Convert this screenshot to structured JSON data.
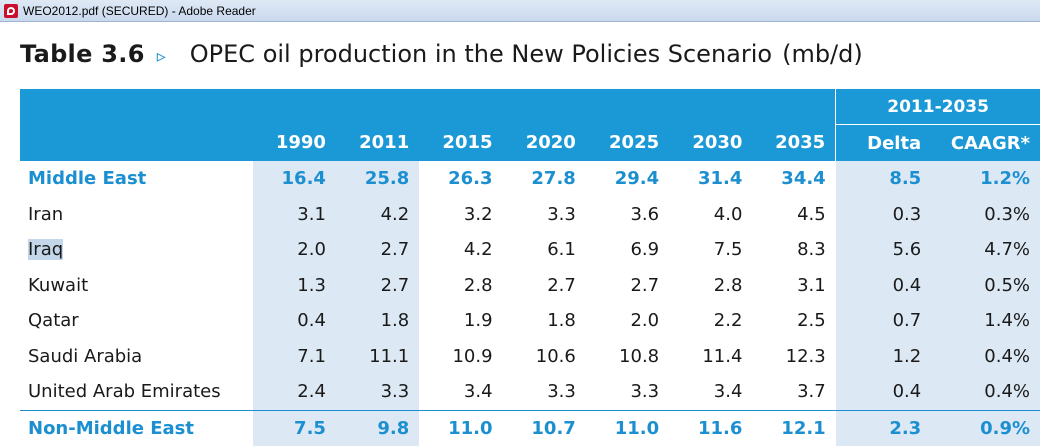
{
  "window": {
    "title": "WEO2012.pdf (SECURED) - Adobe Reader"
  },
  "heading": {
    "table_number": "Table 3.6",
    "arrow": "▹",
    "title": "OPEC oil production in the New Policies Scenario",
    "unit": "(mb/d)"
  },
  "table": {
    "period_header": "2011-2035",
    "year_headers": [
      "1990",
      "2011",
      "2015",
      "2020",
      "2025",
      "2030",
      "2035"
    ],
    "delta_header": "Delta",
    "caagr_header": "CAAGR*",
    "rows": [
      {
        "label": "Middle East",
        "values": [
          "16.4",
          "25.8",
          "26.3",
          "27.8",
          "29.4",
          "31.4",
          "34.4"
        ],
        "delta": "8.5",
        "caagr": "1.2%"
      },
      {
        "label": "Iran",
        "values": [
          "3.1",
          "4.2",
          "3.2",
          "3.3",
          "3.6",
          "4.0",
          "4.5"
        ],
        "delta": "0.3",
        "caagr": "0.3%"
      },
      {
        "label": "Iraq",
        "values": [
          "2.0",
          "2.7",
          "4.2",
          "6.1",
          "6.9",
          "7.5",
          "8.3"
        ],
        "delta": "5.6",
        "caagr": "4.7%"
      },
      {
        "label": "Kuwait",
        "values": [
          "1.3",
          "2.7",
          "2.8",
          "2.7",
          "2.7",
          "2.8",
          "3.1"
        ],
        "delta": "0.4",
        "caagr": "0.5%"
      },
      {
        "label": "Qatar",
        "values": [
          "0.4",
          "1.8",
          "1.9",
          "1.8",
          "2.0",
          "2.2",
          "2.5"
        ],
        "delta": "0.7",
        "caagr": "1.4%"
      },
      {
        "label": "Saudi Arabia",
        "values": [
          "7.1",
          "11.1",
          "10.9",
          "10.6",
          "10.8",
          "11.4",
          "12.3"
        ],
        "delta": "1.2",
        "caagr": "0.4%"
      },
      {
        "label": "United Arab Emirates",
        "values": [
          "2.4",
          "3.3",
          "3.4",
          "3.3",
          "3.3",
          "3.4",
          "3.7"
        ],
        "delta": "0.4",
        "caagr": "0.4%"
      },
      {
        "label": "Non-Middle East",
        "values": [
          "7.5",
          "9.8",
          "11.0",
          "10.7",
          "11.0",
          "11.6",
          "12.1"
        ],
        "delta": "2.3",
        "caagr": "0.9%"
      }
    ]
  },
  "colors": {
    "accent_blue": "#1b99d6",
    "shade": "#dce9f5",
    "region_text": "#1b8fd0"
  },
  "icons": {
    "app": "adobe-reader-icon"
  }
}
